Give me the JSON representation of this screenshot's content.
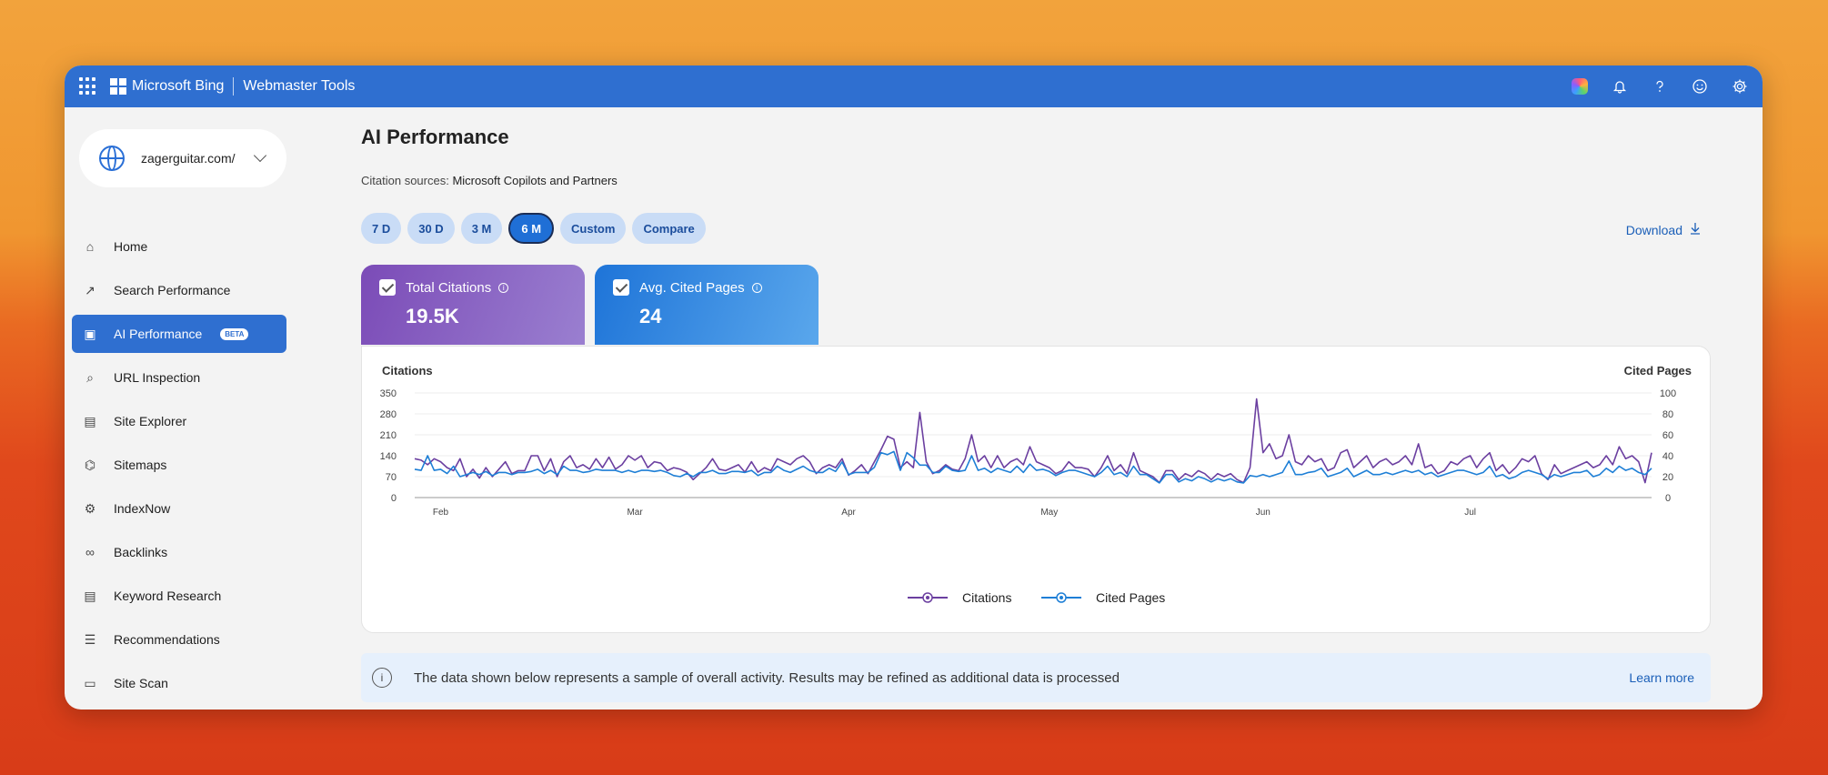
{
  "topbar": {
    "brand": "Microsoft Bing",
    "product": "Webmaster Tools",
    "icons": [
      "apps-icon",
      "copilot-icon",
      "bell-icon",
      "help-icon",
      "feedback-icon",
      "settings-icon"
    ]
  },
  "sidebar": {
    "site": "zagerguitar.com/",
    "items": [
      {
        "label": "Home",
        "icon": "home-icon"
      },
      {
        "label": "Search Performance",
        "icon": "trend-icon"
      },
      {
        "label": "AI Performance",
        "icon": "ai-chart-icon",
        "badge": "BETA",
        "active": true
      },
      {
        "label": "URL Inspection",
        "icon": "magnifier-icon"
      },
      {
        "label": "Site Explorer",
        "icon": "document-icon"
      },
      {
        "label": "Sitemaps",
        "icon": "sitemap-icon"
      },
      {
        "label": "IndexNow",
        "icon": "gear-icon"
      },
      {
        "label": "Backlinks",
        "icon": "link-icon"
      },
      {
        "label": "Keyword Research",
        "icon": "document-icon"
      },
      {
        "label": "Recommendations",
        "icon": "checklist-icon"
      },
      {
        "label": "Site Scan",
        "icon": "scan-icon"
      }
    ]
  },
  "main": {
    "title": "AI Performance",
    "citation_label": "Citation sources:",
    "citation_value": "Microsoft Copilots and Partners",
    "ranges": [
      "7 D",
      "30 D",
      "3 M",
      "6 M",
      "Custom",
      "Compare"
    ],
    "selected_range": "6 M",
    "download": "Download",
    "cards": [
      {
        "label": "Total Citations",
        "value": "19.5K",
        "color": "#7b4bb7"
      },
      {
        "label": "Avg. Cited Pages",
        "value": "24",
        "color": "#1e74d8"
      }
    ],
    "banner": {
      "text": "The data shown below represents a sample of overall activity. Results may be refined as additional data is processed",
      "link": "Learn more"
    }
  },
  "chart_data": {
    "type": "line",
    "left_axis_label": "Citations",
    "right_axis_label": "Cited Pages",
    "left_ticks": [
      0,
      70,
      140,
      210,
      280,
      350
    ],
    "right_ticks": [
      0,
      20,
      40,
      60,
      80,
      100
    ],
    "ylim_left": [
      0,
      350
    ],
    "ylim_right": [
      0,
      100
    ],
    "month_labels": [
      "Feb",
      "Mar",
      "Apr",
      "May",
      "Jun",
      "Jul"
    ],
    "month_positions": [
      4,
      34,
      67,
      98,
      131,
      163
    ],
    "legend_position": "bottom",
    "series": [
      {
        "name": "Citations",
        "axis": "left",
        "color": "#6b3fa0",
        "values": [
          130,
          125,
          110,
          130,
          120,
          100,
          90,
          130,
          70,
          95,
          65,
          100,
          70,
          95,
          120,
          80,
          90,
          90,
          140,
          140,
          90,
          130,
          70,
          120,
          140,
          100,
          110,
          95,
          130,
          100,
          135,
          95,
          110,
          140,
          125,
          140,
          100,
          120,
          115,
          90,
          100,
          95,
          85,
          60,
          80,
          100,
          130,
          95,
          90,
          100,
          110,
          85,
          120,
          85,
          100,
          90,
          130,
          120,
          110,
          130,
          140,
          120,
          80,
          100,
          110,
          100,
          130,
          75,
          90,
          110,
          80,
          120,
          160,
          205,
          195,
          100,
          120,
          100,
          285,
          120,
          80,
          90,
          110,
          95,
          90,
          130,
          210,
          120,
          140,
          100,
          140,
          100,
          120,
          130,
          110,
          170,
          120,
          110,
          100,
          80,
          90,
          120,
          100,
          100,
          95,
          70,
          100,
          140,
          90,
          110,
          80,
          150,
          90,
          80,
          70,
          50,
          90,
          90,
          60,
          80,
          70,
          90,
          80,
          60,
          80,
          70,
          80,
          60,
          50,
          100,
          330,
          150,
          180,
          130,
          140,
          210,
          120,
          110,
          140,
          120,
          130,
          90,
          100,
          150,
          160,
          100,
          120,
          140,
          100,
          120,
          130,
          110,
          120,
          140,
          110,
          180,
          100,
          110,
          80,
          90,
          120,
          110,
          130,
          140,
          100,
          130,
          150,
          90,
          110,
          80,
          100,
          130,
          120,
          140,
          80,
          60,
          110,
          80,
          90,
          100,
          110,
          120,
          100,
          110,
          140,
          110,
          170,
          130,
          140,
          120,
          50,
          150
        ],
        "values_note": ""
      },
      {
        "name": "Cited Pages",
        "axis": "right",
        "color": "#1e7fd6",
        "values": [
          27,
          26,
          40,
          26,
          27,
          23,
          30,
          20,
          22,
          24,
          22,
          25,
          21,
          24,
          24,
          22,
          24,
          24,
          25,
          27,
          23,
          26,
          22,
          30,
          26,
          26,
          24,
          25,
          27,
          26,
          26,
          26,
          24,
          26,
          24,
          26,
          26,
          25,
          26,
          24,
          21,
          20,
          23,
          20,
          24,
          24,
          26,
          23,
          23,
          25,
          25,
          24,
          26,
          21,
          24,
          24,
          30,
          26,
          24,
          27,
          30,
          26,
          24,
          24,
          28,
          25,
          34,
          22,
          24,
          24,
          24,
          29,
          43,
          41,
          44,
          26,
          43,
          38,
          31,
          31,
          24,
          24,
          30,
          26,
          25,
          26,
          40,
          26,
          28,
          24,
          28,
          26,
          24,
          30,
          24,
          32,
          26,
          27,
          25,
          21,
          24,
          26,
          26,
          24,
          22,
          20,
          24,
          30,
          22,
          24,
          20,
          30,
          22,
          22,
          18,
          14,
          22,
          22,
          15,
          18,
          16,
          20,
          18,
          15,
          18,
          16,
          18,
          15,
          14,
          21,
          20,
          22,
          20,
          22,
          24,
          35,
          22,
          22,
          24,
          25,
          28,
          20,
          22,
          24,
          28,
          20,
          23,
          26,
          22,
          22,
          24,
          22,
          24,
          26,
          24,
          26,
          22,
          24,
          20,
          22,
          24,
          26,
          26,
          24,
          22,
          24,
          30,
          20,
          22,
          18,
          20,
          24,
          26,
          24,
          22,
          18,
          22,
          20,
          22,
          24,
          24,
          26,
          20,
          22,
          28,
          24,
          30,
          26,
          28,
          24,
          22,
          28
        ],
        "values_note": ""
      }
    ]
  }
}
